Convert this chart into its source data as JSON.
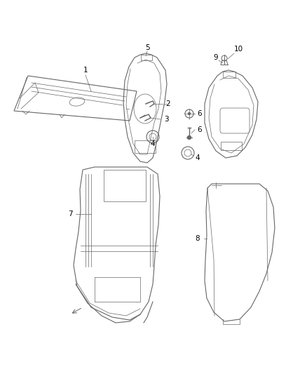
{
  "background_color": "#ffffff",
  "line_color": "#666666",
  "label_color": "#000000",
  "label_fs": 7.5
}
